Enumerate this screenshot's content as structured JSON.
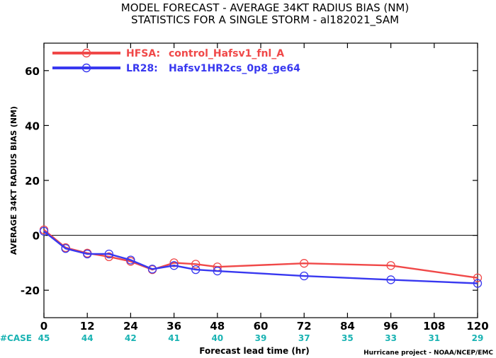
{
  "chart_data": {
    "type": "line",
    "title": "MODEL FORECAST - AVERAGE 34KT RADIUS BIAS (NM)",
    "subtitle": "STATISTICS FOR A SINGLE STORM - al182021_SAM",
    "xlabel": "Forecast lead time (hr)",
    "ylabel": "AVERAGE 34KT RADIUS BIAS (NM)",
    "xlim": [
      0,
      120
    ],
    "ylim": [
      -30,
      70
    ],
    "x_ticks": [
      0,
      12,
      24,
      36,
      48,
      60,
      72,
      84,
      96,
      108,
      120
    ],
    "y_ticks": [
      -20,
      0,
      20,
      40,
      60
    ],
    "zero_line": true,
    "case_label": "#CASE",
    "case_counts": [
      "45",
      "44",
      "42",
      "41",
      "40",
      "39",
      "37",
      "35",
      "33",
      "31",
      "29"
    ],
    "series": [
      {
        "name": "HFSA: control_Hafsv1_fnl_A",
        "legend_label": "HFSA:",
        "legend_desc": "control_Hafsv1_fnl_A",
        "color": "#f04848",
        "x": [
          0,
          6,
          12,
          18,
          24,
          30,
          36,
          42,
          48,
          72,
          96,
          120
        ],
        "y": [
          2,
          -4.5,
          -6.5,
          -7.8,
          -9.5,
          -12.5,
          -10,
          -10.5,
          -11.5,
          -10.2,
          -11,
          -15.5
        ]
      },
      {
        "name": "LR28: Hafsv1HR2cs_0p8_ge64",
        "legend_label": "LR28:",
        "legend_desc": "Hafsv1HR2cs_0p8_ge64",
        "color": "#3838f0",
        "x": [
          0,
          6,
          12,
          18,
          24,
          30,
          36,
          42,
          48,
          72,
          96,
          120
        ],
        "y": [
          1.5,
          -4.8,
          -6.8,
          -6.8,
          -9,
          -12.3,
          -11,
          -12.5,
          -13,
          -14.8,
          -16.2,
          -17.5
        ]
      }
    ]
  },
  "credit": "Hurricane project - NOAA/NCEP/EMC"
}
